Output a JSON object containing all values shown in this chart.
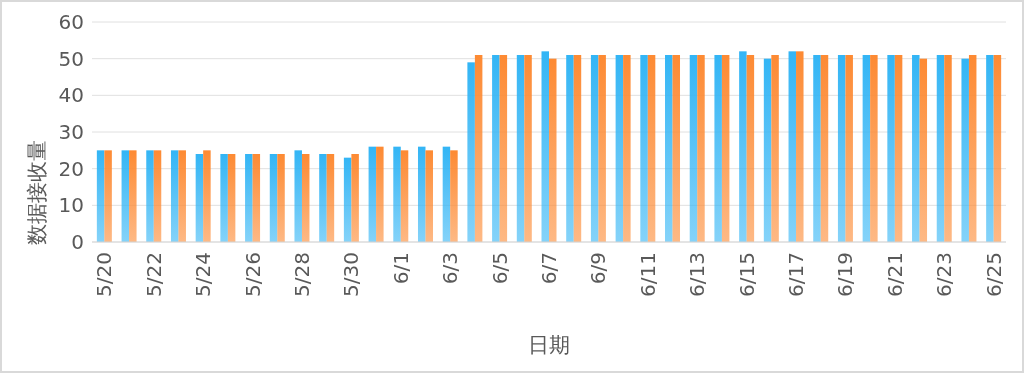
{
  "chart_data": {
    "type": "bar",
    "xlabel": "日期",
    "ylabel": "数据接收量",
    "categories": [
      "5/20",
      null,
      "5/22",
      null,
      "5/24",
      null,
      "5/26",
      null,
      "5/28",
      null,
      "5/30",
      null,
      "6/1",
      null,
      "6/3",
      null,
      "6/5",
      null,
      "6/7",
      null,
      "6/9",
      null,
      "6/11",
      null,
      "6/13",
      null,
      "6/15",
      null,
      "6/17",
      null,
      "6/19",
      null,
      "6/21",
      null,
      "6/23",
      null,
      "6/25"
    ],
    "series": [
      {
        "color": "#33b5f5",
        "values": [
          25,
          25,
          25,
          25,
          24,
          24,
          24,
          24,
          25,
          24,
          23,
          26,
          26,
          26,
          26,
          49,
          51,
          51,
          52,
          51,
          51,
          51,
          51,
          51,
          51,
          51,
          52,
          50,
          52,
          51,
          51,
          51,
          51,
          51,
          51,
          50,
          51
        ]
      },
      {
        "color": "#fd8a33",
        "values": [
          25,
          25,
          25,
          25,
          25,
          24,
          24,
          24,
          24,
          24,
          24,
          26,
          25,
          25,
          25,
          51,
          51,
          51,
          50,
          51,
          51,
          51,
          51,
          51,
          51,
          51,
          51,
          51,
          52,
          51,
          51,
          51,
          51,
          50,
          51,
          51,
          51
        ]
      }
    ],
    "ylim": [
      0,
      60
    ],
    "yticks": [
      0,
      10,
      20,
      30,
      40,
      50,
      60
    ],
    "grid": "y"
  }
}
